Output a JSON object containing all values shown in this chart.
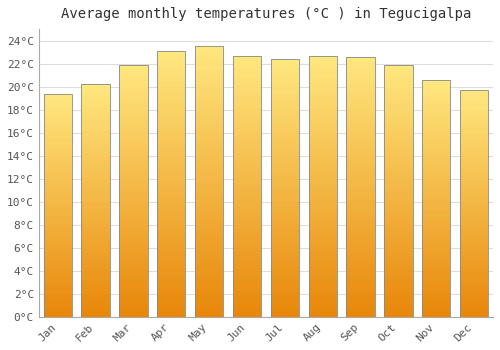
{
  "title": "Average monthly temperatures (°C ) in Tegucigalpa",
  "months": [
    "Jan",
    "Feb",
    "Mar",
    "Apr",
    "May",
    "Jun",
    "Jul",
    "Aug",
    "Sep",
    "Oct",
    "Nov",
    "Dec"
  ],
  "values": [
    19.4,
    20.2,
    21.9,
    23.1,
    23.5,
    22.7,
    22.4,
    22.7,
    22.6,
    21.9,
    20.6,
    19.7
  ],
  "bar_color_bottom": "#E8870A",
  "bar_color_mid": "#FFAA00",
  "bar_color_top": "#FFE060",
  "ylim": [
    0,
    25
  ],
  "yticks": [
    0,
    2,
    4,
    6,
    8,
    10,
    12,
    14,
    16,
    18,
    20,
    22,
    24
  ],
  "ytick_labels": [
    "0°C",
    "2°C",
    "4°C",
    "6°C",
    "8°C",
    "10°C",
    "12°C",
    "14°C",
    "16°C",
    "18°C",
    "20°C",
    "22°C",
    "24°C"
  ],
  "background_color": "#ffffff",
  "grid_color": "#dddddd",
  "title_fontsize": 10,
  "tick_fontsize": 8,
  "bar_edge_color": "#888888",
  "bar_width": 0.75
}
